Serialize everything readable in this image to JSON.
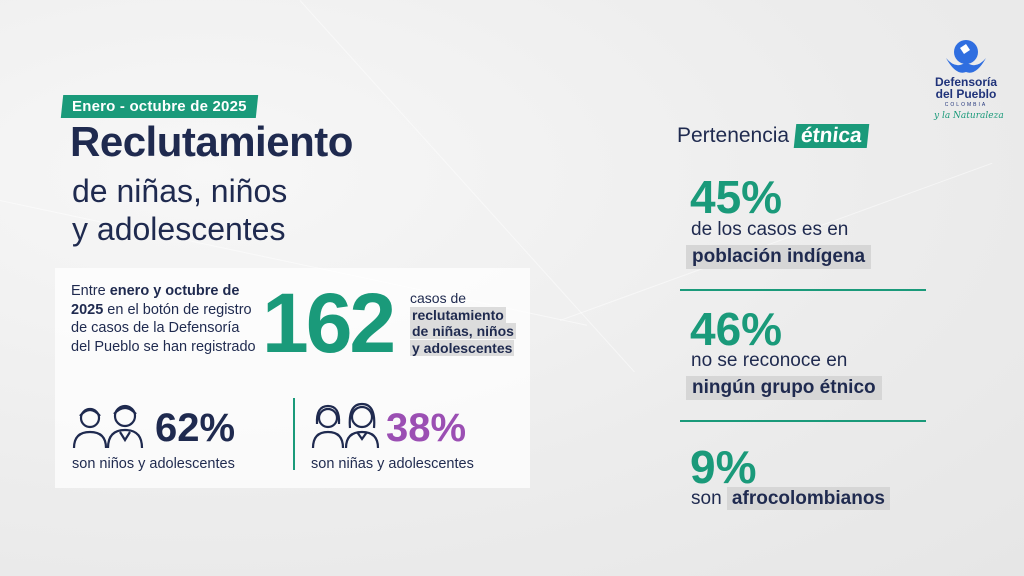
{
  "header": {
    "tag": "Enero - octubre de 2025",
    "title": "Reclutamiento",
    "subtitle_line1": "de niñas, niños",
    "subtitle_line2": "y adolescentes"
  },
  "intro": {
    "p1": "Entre ",
    "b1": "enero y octubre de 2025",
    "p2": " en el botón de registro de casos de la Defensoría del Pueblo se han registrado"
  },
  "total": {
    "value": "162",
    "line1": "casos de",
    "hl1": "reclutamiento",
    "hl2": "de niñas, niños",
    "hl3": "y adolescentes"
  },
  "boys": {
    "pct": "62%",
    "label": "son niños y adolescentes",
    "color": "#1f2a4f"
  },
  "girls": {
    "pct": "38%",
    "label": "son niñas y adolescentes",
    "color": "#9b4fb3"
  },
  "ethnic": {
    "title": "Pertenencia ",
    "title_em": "étnica",
    "stats": [
      {
        "pct": "45%",
        "line": "de los casos es en",
        "hl": "población indígena"
      },
      {
        "pct": "46%",
        "line": "no se reconoce en",
        "hl": "ningún grupo étnico"
      },
      {
        "pct": "9%",
        "line": "son ",
        "hl": "afrocolombianos"
      }
    ]
  },
  "logo": {
    "line1": "Defensoría",
    "line2": "del Pueblo",
    "country": "COLOMBIA",
    "tagline": "y la Naturaleza"
  },
  "colors": {
    "accent": "#1a9a7a",
    "navy": "#1f2a4f",
    "purple": "#9b4fb3"
  }
}
